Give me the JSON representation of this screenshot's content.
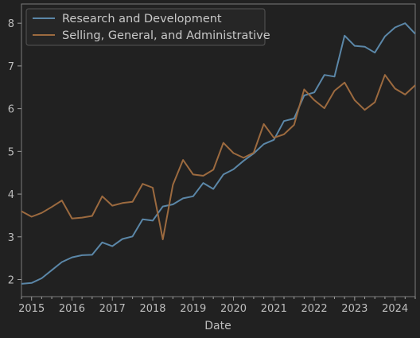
{
  "chart_data": {
    "type": "line",
    "xlabel": "Date",
    "ylabel": "",
    "title": "",
    "xlim": [
      2014.75,
      2024.5
    ],
    "ylim": [
      1.6,
      8.45
    ],
    "x_ticks": [
      {
        "value": 2015,
        "label": "2015"
      },
      {
        "value": 2016,
        "label": "2016"
      },
      {
        "value": 2017,
        "label": "2017"
      },
      {
        "value": 2018,
        "label": "2018"
      },
      {
        "value": 2019,
        "label": "2019"
      },
      {
        "value": 2020,
        "label": "2020"
      },
      {
        "value": 2021,
        "label": "2021"
      },
      {
        "value": 2022,
        "label": "2022"
      },
      {
        "value": 2023,
        "label": "2023"
      },
      {
        "value": 2024,
        "label": "2024"
      }
    ],
    "y_ticks": [
      {
        "value": 2,
        "label": "2"
      },
      {
        "value": 3,
        "label": "3"
      },
      {
        "value": 4,
        "label": "4"
      },
      {
        "value": 5,
        "label": "5"
      },
      {
        "value": 6,
        "label": "6"
      },
      {
        "value": 7,
        "label": "7"
      },
      {
        "value": 8,
        "label": "8"
      }
    ],
    "grid": false,
    "legend_position": "top-left",
    "series": [
      {
        "name": "Research and Development",
        "color": "#5b87a8",
        "x": [
          2014.75,
          2015.0,
          2015.25,
          2015.5,
          2015.75,
          2016.0,
          2016.25,
          2016.5,
          2016.75,
          2017.0,
          2017.25,
          2017.5,
          2017.75,
          2018.0,
          2018.25,
          2018.5,
          2018.75,
          2019.0,
          2019.25,
          2019.5,
          2019.75,
          2020.0,
          2020.25,
          2020.5,
          2020.75,
          2021.0,
          2021.25,
          2021.5,
          2021.75,
          2022.0,
          2022.25,
          2022.5,
          2022.75,
          2023.0,
          2023.25,
          2023.5,
          2023.75,
          2024.0,
          2024.25,
          2024.5
        ],
        "values": [
          1.9,
          1.92,
          2.03,
          2.22,
          2.41,
          2.52,
          2.57,
          2.58,
          2.87,
          2.78,
          2.95,
          3.01,
          3.41,
          3.38,
          3.71,
          3.76,
          3.9,
          3.95,
          4.26,
          4.12,
          4.46,
          4.58,
          4.78,
          4.95,
          5.17,
          5.27,
          5.71,
          5.77,
          6.31,
          6.38,
          6.79,
          6.75,
          7.71,
          7.47,
          7.45,
          7.31,
          7.69,
          7.9,
          8.0,
          7.75
        ]
      },
      {
        "name": "Selling, General, and Administrative",
        "color": "#9c6a3f",
        "x": [
          2014.75,
          2015.0,
          2015.25,
          2015.5,
          2015.75,
          2016.0,
          2016.25,
          2016.5,
          2016.75,
          2017.0,
          2017.25,
          2017.5,
          2017.75,
          2018.0,
          2018.25,
          2018.5,
          2018.75,
          2019.0,
          2019.25,
          2019.5,
          2019.75,
          2020.0,
          2020.25,
          2020.5,
          2020.75,
          2021.0,
          2021.25,
          2021.5,
          2021.75,
          2022.0,
          2022.25,
          2022.5,
          2022.75,
          2023.0,
          2023.25,
          2023.5,
          2023.75,
          2024.0,
          2024.25,
          2024.5
        ],
        "values": [
          3.6,
          3.47,
          3.56,
          3.7,
          3.85,
          3.43,
          3.45,
          3.49,
          3.95,
          3.73,
          3.79,
          3.82,
          4.24,
          4.15,
          2.94,
          4.22,
          4.8,
          4.46,
          4.43,
          4.57,
          5.2,
          4.96,
          4.85,
          4.97,
          5.64,
          5.32,
          5.4,
          5.62,
          6.45,
          6.2,
          6.01,
          6.42,
          6.61,
          6.2,
          5.97,
          6.15,
          6.79,
          6.47,
          6.33,
          6.55
        ]
      }
    ]
  }
}
